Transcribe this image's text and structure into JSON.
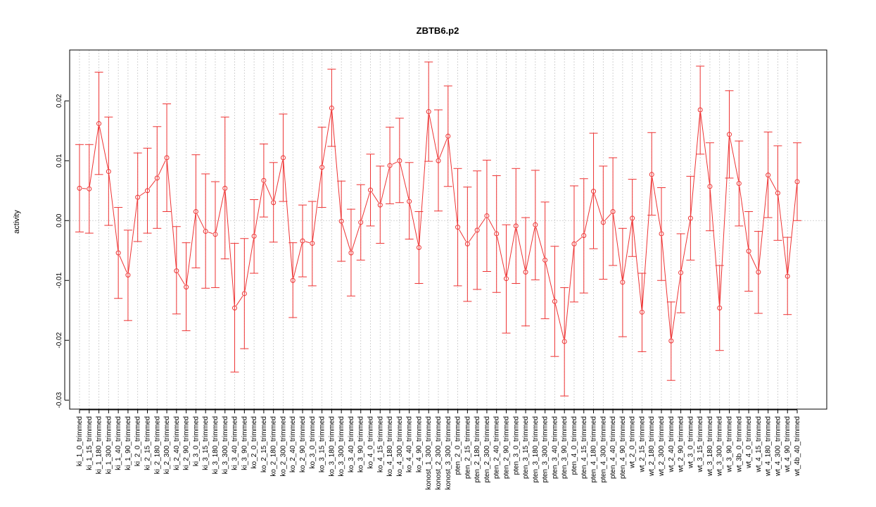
{
  "chart_data": {
    "type": "line",
    "title": "ZBTB6.p2",
    "xlabel": "",
    "ylabel": "activity",
    "ylim": [
      -0.0315,
      0.0285
    ],
    "yticks": [
      -0.03,
      -0.02,
      -0.01,
      0.0,
      0.01,
      0.02
    ],
    "ytick_labels": [
      "-0.03",
      "-0.02",
      "-0.01",
      "0.00",
      "0.01",
      "0.02"
    ],
    "grid": true,
    "error_bars": true,
    "colors": {
      "series": "#ee3333",
      "grid": "#c8c8c8",
      "axis": "#000000"
    },
    "categories": [
      "ki_1_0_trimmed",
      "ki_1_15_trimmed",
      "ki_1_180_trimmed",
      "ki_1_300_trimmed",
      "ki_1_40_trimmed",
      "ki_1_90_trimmed",
      "ki_2_0_trimmed",
      "ki_2_15_trimmed",
      "ki_2_180_trimmed",
      "ki_2_300_trimmed",
      "ki_2_40_trimmed",
      "ki_2_90_trimmed",
      "ki_3_0_trimmed",
      "ki_3_15_trimmed",
      "ki_3_180_trimmed",
      "ki_3_300_trimmed",
      "ki_3_40_trimmed",
      "ki_3_90_trimmed",
      "ko_2_0_trimmed",
      "ko_2_15_trimmed",
      "ko_2_180_trimmed",
      "ko_2_300_trimmed",
      "ko_2_40_trimmed",
      "ko_2_90_trimmed",
      "ko_3_0_trimmed",
      "ko_3_15_trimmed",
      "ko_3_180_trimmed",
      "ko_3_300_trimmed",
      "ko_3_40_trimmed",
      "ko_3_90_trimmed",
      "ko_4_0_trimmed",
      "ko_4_15_trimmed",
      "ko_4_180_trimmed",
      "ko_4_300_trimmed",
      "ko_4_40_trimmed",
      "ko_4_90_trimmed",
      "konost_1_300_trimmed",
      "konost_2_300_trimmed",
      "konost_3_300_trimmed",
      "pten_2_0_trimmed",
      "pten_2_15_trimmed",
      "pten_2_180_trimmed",
      "pten_2_300_trimmed",
      "pten_2_40_trimmed",
      "pten_2_90_trimmed",
      "pten_3_0_trimmed",
      "pten_3_15_trimmed",
      "pten_3_180_trimmed",
      "pten_3_300_trimmed",
      "pten_3_40_trimmed",
      "pten_3_90_trimmed",
      "pten_4_0_trimmed",
      "pten_4_15_trimmed",
      "pten_4_180_trimmed",
      "pten_4_300_trimmed",
      "pten_4_40_trimmed",
      "pten_4_90_trimmed",
      "wt_2_0_trimmed",
      "wt_2_15_trimmed",
      "wt_2_180_trimmed",
      "wt_2_300_trimmed",
      "wt_2_40_trimmed",
      "wt_2_90_trimmed",
      "wt_3_0_trimmed",
      "wt_3_15_trimmed",
      "wt_3_180_trimmed",
      "wt_3_300_trimmed",
      "wt_3_90_trimmed",
      "wt_3b_0_trimmed",
      "wt_4_0_trimmed",
      "wt_4_15_trimmed",
      "wt_4_180_trimmed",
      "wt_4_300_trimmed",
      "wt_4_90_trimmed",
      "wt_4b_40_trimmed"
    ],
    "values": [
      0.0054,
      0.0053,
      0.0162,
      0.0082,
      -0.0054,
      -0.0091,
      0.0039,
      0.005,
      0.0071,
      0.0105,
      -0.0084,
      -0.0111,
      0.0015,
      -0.0018,
      -0.0023,
      0.0054,
      -0.0146,
      -0.0122,
      -0.0026,
      0.0067,
      0.003,
      0.0105,
      -0.01,
      -0.0034,
      -0.0038,
      0.0089,
      0.0188,
      -0.0001,
      -0.0054,
      -0.0003,
      0.0051,
      0.0026,
      0.0092,
      0.01,
      0.0032,
      -0.0045,
      0.0182,
      0.01,
      0.0141,
      -0.0011,
      -0.0039,
      -0.0016,
      0.0008,
      -0.0022,
      -0.0097,
      -0.0009,
      -0.0086,
      -0.0007,
      -0.0066,
      -0.0135,
      -0.0202,
      -0.0039,
      -0.0025,
      0.0049,
      -0.0003,
      0.0015,
      -0.0103,
      0.0004,
      -0.0153,
      0.0077,
      -0.0022,
      -0.0201,
      -0.0087,
      0.0004,
      0.0185,
      0.0057,
      -0.0146,
      0.0144,
      0.0062,
      -0.0051,
      -0.0086,
      0.0076,
      0.0046,
      -0.0093,
      0.0065
    ],
    "err_upper": [
      0.0127,
      0.0127,
      0.0248,
      0.0173,
      0.0022,
      -0.0016,
      0.0113,
      0.0121,
      0.0157,
      0.0195,
      -0.001,
      -0.0037,
      0.011,
      0.0078,
      0.0065,
      0.0173,
      -0.0038,
      -0.003,
      0.0035,
      0.0128,
      0.0097,
      0.0178,
      -0.0037,
      0.0026,
      0.0032,
      0.0156,
      0.0253,
      0.0066,
      0.0019,
      0.006,
      0.0111,
      0.0091,
      0.0156,
      0.0171,
      0.0097,
      0.0015,
      0.0265,
      0.0185,
      0.0225,
      0.0087,
      0.0056,
      0.0083,
      0.0101,
      0.0075,
      -0.0007,
      0.0087,
      0.0005,
      0.0084,
      0.0031,
      -0.0043,
      -0.0112,
      0.0058,
      0.007,
      0.0146,
      0.0091,
      0.0105,
      -0.0013,
      0.0069,
      -0.0088,
      0.0147,
      0.0055,
      -0.0136,
      -0.0022,
      0.0074,
      0.0258,
      0.013,
      -0.0075,
      0.0217,
      0.0133,
      0.0015,
      -0.0018,
      0.0148,
      0.0125,
      -0.0028,
      0.013
    ],
    "err_lower": [
      -0.0019,
      -0.0021,
      0.0077,
      -0.0008,
      -0.013,
      -0.0167,
      -0.0035,
      -0.0021,
      -0.0013,
      0.0015,
      -0.0156,
      -0.0184,
      -0.0079,
      -0.0113,
      -0.0112,
      -0.0064,
      -0.0253,
      -0.0214,
      -0.0088,
      0.0006,
      -0.0036,
      0.0032,
      -0.0162,
      -0.0094,
      -0.0109,
      0.0022,
      0.0124,
      -0.0068,
      -0.0126,
      -0.0066,
      -0.0009,
      -0.0038,
      0.0028,
      0.003,
      -0.0031,
      -0.0105,
      0.0099,
      0.0016,
      0.0057,
      -0.0109,
      -0.0135,
      -0.0115,
      -0.0085,
      -0.012,
      -0.0188,
      -0.0105,
      -0.0176,
      -0.0099,
      -0.0164,
      -0.0227,
      -0.0293,
      -0.0136,
      -0.0121,
      -0.0047,
      -0.0098,
      -0.0075,
      -0.0194,
      -0.006,
      -0.0219,
      0.0009,
      -0.01,
      -0.0267,
      -0.0154,
      -0.0066,
      0.0111,
      -0.0017,
      -0.0217,
      0.0071,
      -0.0009,
      -0.0118,
      -0.0155,
      0.0005,
      -0.0033,
      -0.0157,
      0.0
    ]
  }
}
